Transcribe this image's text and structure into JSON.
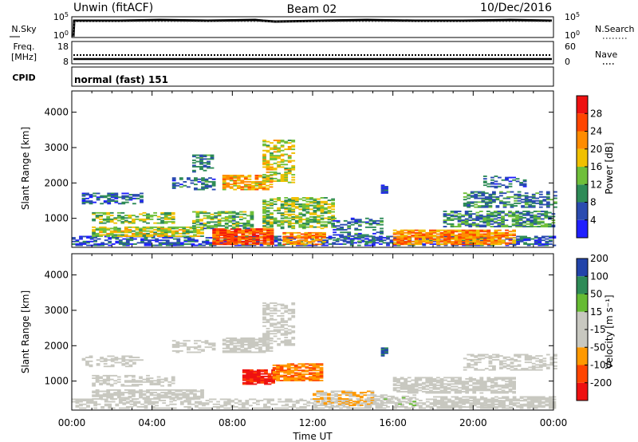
{
  "header": {
    "left": "Unwin (fitACF)",
    "center": "Beam 02",
    "right": "10/Dec/2016"
  },
  "nsky_strip": {
    "left_label": "N.Sky",
    "right_label": "N.Search",
    "left_ticks": [
      "10^5",
      "10^0"
    ],
    "right_ticks": [
      "10^5",
      "10^0"
    ]
  },
  "freq_strip": {
    "left_label_line1": "Freq.",
    "left_label_line2": "[MHz]",
    "right_label": "Nave",
    "left_ticks": [
      "18",
      "8"
    ],
    "right_ticks": [
      "60",
      "0"
    ]
  },
  "cpid_strip": {
    "label": "CPID",
    "value": "normal (fast) 151"
  },
  "colors": {
    "power": [
      "#1f1fff",
      "#2a4bb0",
      "#2e8b57",
      "#6fbf3a",
      "#f0c000",
      "#ff8c00",
      "#ff4500",
      "#ee1111"
    ],
    "velocity": [
      "#ee1111",
      "#ff4500",
      "#ff9900",
      "#c8c8c0",
      "#c8c8c0",
      "#66bb33",
      "#2e8b57",
      "#2244aa"
    ]
  },
  "chart_data": [
    {
      "type": "heatmap",
      "name": "power",
      "ylabel": "Slant Range [km]",
      "xlabel": "",
      "x_ticks": [
        "00:00",
        "04:00",
        "08:00",
        "12:00",
        "16:00",
        "20:00",
        "00:00"
      ],
      "y_ticks": [
        1000,
        2000,
        3000,
        4000
      ],
      "xlim_hours": [
        0,
        24
      ],
      "ylim_km": [
        180,
        4600
      ],
      "colorbar": {
        "label": "Power [dB]",
        "ticks": [
          "4",
          "8",
          "12",
          "16",
          "20",
          "24",
          "28"
        ],
        "range": [
          0,
          32
        ]
      },
      "regions": [
        {
          "t0": 0.0,
          "t1": 24.0,
          "r0": 220,
          "r1": 500,
          "v": 6,
          "d": 0.55
        },
        {
          "t0": 1.0,
          "t1": 6.5,
          "r0": 480,
          "r1": 760,
          "v": 16,
          "d": 0.75
        },
        {
          "t0": 1.0,
          "t1": 5.0,
          "r0": 850,
          "r1": 1150,
          "v": 14,
          "d": 0.55
        },
        {
          "t0": 0.5,
          "t1": 3.5,
          "r0": 1400,
          "r1": 1700,
          "v": 7,
          "d": 0.55
        },
        {
          "t0": 5.0,
          "t1": 7.0,
          "r0": 1800,
          "r1": 2150,
          "v": 8,
          "d": 0.5
        },
        {
          "t0": 6.0,
          "t1": 7.0,
          "r0": 2300,
          "r1": 2800,
          "v": 8,
          "d": 0.45
        },
        {
          "t0": 7.5,
          "t1": 10.0,
          "r0": 1800,
          "r1": 2200,
          "v": 20,
          "d": 0.75
        },
        {
          "t0": 9.5,
          "t1": 11.0,
          "r0": 2000,
          "r1": 3200,
          "v": 16,
          "d": 0.55
        },
        {
          "t0": 7.0,
          "t1": 10.0,
          "r0": 250,
          "r1": 700,
          "v": 26,
          "d": 0.85
        },
        {
          "t0": 10.5,
          "t1": 12.5,
          "r0": 250,
          "r1": 600,
          "v": 22,
          "d": 0.75
        },
        {
          "t0": 6.0,
          "t1": 9.0,
          "r0": 700,
          "r1": 1200,
          "v": 12,
          "d": 0.55
        },
        {
          "t0": 9.5,
          "t1": 13.0,
          "r0": 700,
          "r1": 1600,
          "v": 14,
          "d": 0.6
        },
        {
          "t0": 13.0,
          "t1": 15.5,
          "r0": 300,
          "r1": 1000,
          "v": 8,
          "d": 0.4
        },
        {
          "t0": 15.4,
          "t1": 15.7,
          "r0": 1700,
          "r1": 1950,
          "v": 5,
          "d": 0.9
        },
        {
          "t0": 16.0,
          "t1": 22.0,
          "r0": 250,
          "r1": 650,
          "v": 22,
          "d": 0.8
        },
        {
          "t0": 18.5,
          "t1": 24.0,
          "r0": 750,
          "r1": 1200,
          "v": 10,
          "d": 0.65
        },
        {
          "t0": 19.5,
          "t1": 24.0,
          "r0": 1300,
          "r1": 1750,
          "v": 9,
          "d": 0.5
        },
        {
          "t0": 20.5,
          "t1": 22.5,
          "r0": 1850,
          "r1": 2200,
          "v": 7,
          "d": 0.35
        }
      ]
    },
    {
      "type": "heatmap",
      "name": "velocity",
      "ylabel": "Slant Range [km]",
      "xlabel": "Time UT",
      "x_ticks": [
        "00:00",
        "04:00",
        "08:00",
        "12:00",
        "16:00",
        "20:00",
        "00:00"
      ],
      "y_ticks": [
        1000,
        2000,
        3000,
        4000
      ],
      "xlim_hours": [
        0,
        24
      ],
      "ylim_km": [
        180,
        4600
      ],
      "colorbar": {
        "label": "Velocity [m s⁻¹]",
        "ticks": [
          "-200",
          "-100",
          "-50",
          "-15",
          "15",
          "50",
          "100",
          "200"
        ],
        "range": [
          -250,
          250
        ]
      },
      "regions": [
        {
          "t0": 0.0,
          "t1": 24.0,
          "r0": 220,
          "r1": 500,
          "v": 0,
          "d": 0.5
        },
        {
          "t0": 1.0,
          "t1": 6.5,
          "r0": 480,
          "r1": 760,
          "v": 0,
          "d": 0.7
        },
        {
          "t0": 1.0,
          "t1": 5.0,
          "r0": 850,
          "r1": 1150,
          "v": 0,
          "d": 0.5
        },
        {
          "t0": 0.5,
          "t1": 3.5,
          "r0": 1400,
          "r1": 1700,
          "v": 0,
          "d": 0.45
        },
        {
          "t0": 5.0,
          "t1": 7.0,
          "r0": 1800,
          "r1": 2150,
          "v": 0,
          "d": 0.45
        },
        {
          "t0": 7.5,
          "t1": 10.0,
          "r0": 1800,
          "r1": 2200,
          "v": 0,
          "d": 0.7
        },
        {
          "t0": 9.5,
          "t1": 11.0,
          "r0": 2000,
          "r1": 3200,
          "v": 20,
          "d": 0.5
        },
        {
          "t0": 8.5,
          "t1": 10.0,
          "r0": 900,
          "r1": 1300,
          "v": -200,
          "d": 0.85
        },
        {
          "t0": 10.0,
          "t1": 12.5,
          "r0": 1000,
          "r1": 1500,
          "v": -120,
          "d": 0.8
        },
        {
          "t0": 12.0,
          "t1": 15.0,
          "r0": 300,
          "r1": 700,
          "v": -60,
          "d": 0.6
        },
        {
          "t0": 15.4,
          "t1": 15.7,
          "r0": 1700,
          "r1": 1950,
          "v": 200,
          "d": 0.9
        },
        {
          "t0": 15.0,
          "t1": 17.0,
          "r0": 300,
          "r1": 600,
          "v": 40,
          "d": 0.5
        },
        {
          "t0": 16.0,
          "t1": 22.0,
          "r0": 650,
          "r1": 1100,
          "v": 0,
          "d": 0.7
        },
        {
          "t0": 18.0,
          "t1": 24.0,
          "r0": 250,
          "r1": 550,
          "v": 30,
          "d": 0.6
        },
        {
          "t0": 19.5,
          "t1": 24.0,
          "r0": 1300,
          "r1": 1750,
          "v": 0,
          "d": 0.45
        }
      ]
    }
  ]
}
